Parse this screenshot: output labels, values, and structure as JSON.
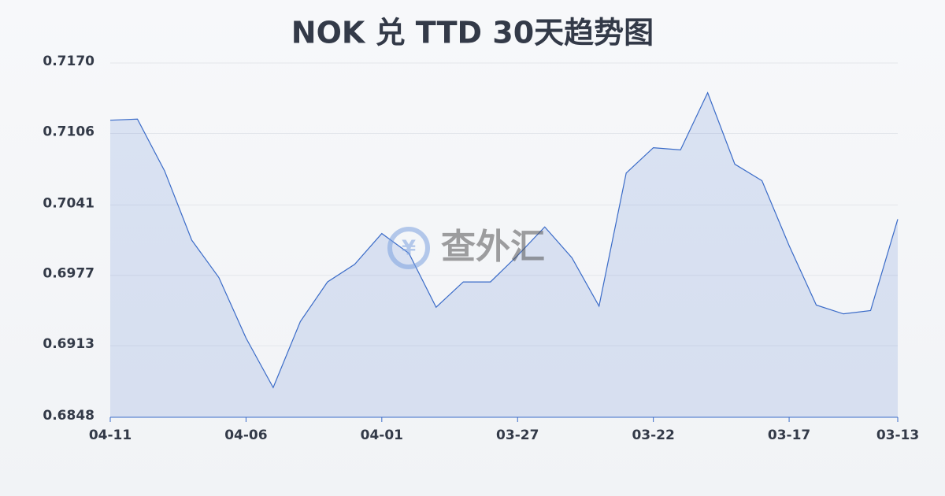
{
  "chart_data": {
    "type": "area",
    "title": "NOK 兑 TTD 30天趋势图",
    "watermark": "查外汇",
    "categories": [
      "04-11",
      null,
      null,
      null,
      null,
      "04-06",
      null,
      null,
      null,
      null,
      "04-01",
      null,
      null,
      null,
      null,
      "03-27",
      null,
      null,
      null,
      null,
      "03-22",
      null,
      null,
      null,
      null,
      "03-17",
      null,
      null,
      null,
      "03-13"
    ],
    "series": [
      {
        "name": "NOK/TTD",
        "color": "#3a6bc8",
        "values": [
          0.7118,
          0.7119,
          0.7072,
          0.7009,
          0.6975,
          0.692,
          0.6875,
          0.6935,
          0.6971,
          0.6987,
          0.7015,
          0.6997,
          0.6948,
          0.6971,
          0.6971,
          0.6995,
          0.7021,
          0.6993,
          0.6949,
          0.707,
          0.7093,
          0.7091,
          0.7143,
          0.7078,
          0.7063,
          0.7004,
          0.695,
          0.6942,
          0.6945,
          0.7028
        ]
      }
    ],
    "ylim": [
      0.6848,
      0.717
    ],
    "yticks": [
      0.6848,
      0.6913,
      0.6977,
      0.7041,
      0.7106,
      {
        "value": 0.717,
        "label": "0.7170"
      }
    ],
    "grid": true
  }
}
